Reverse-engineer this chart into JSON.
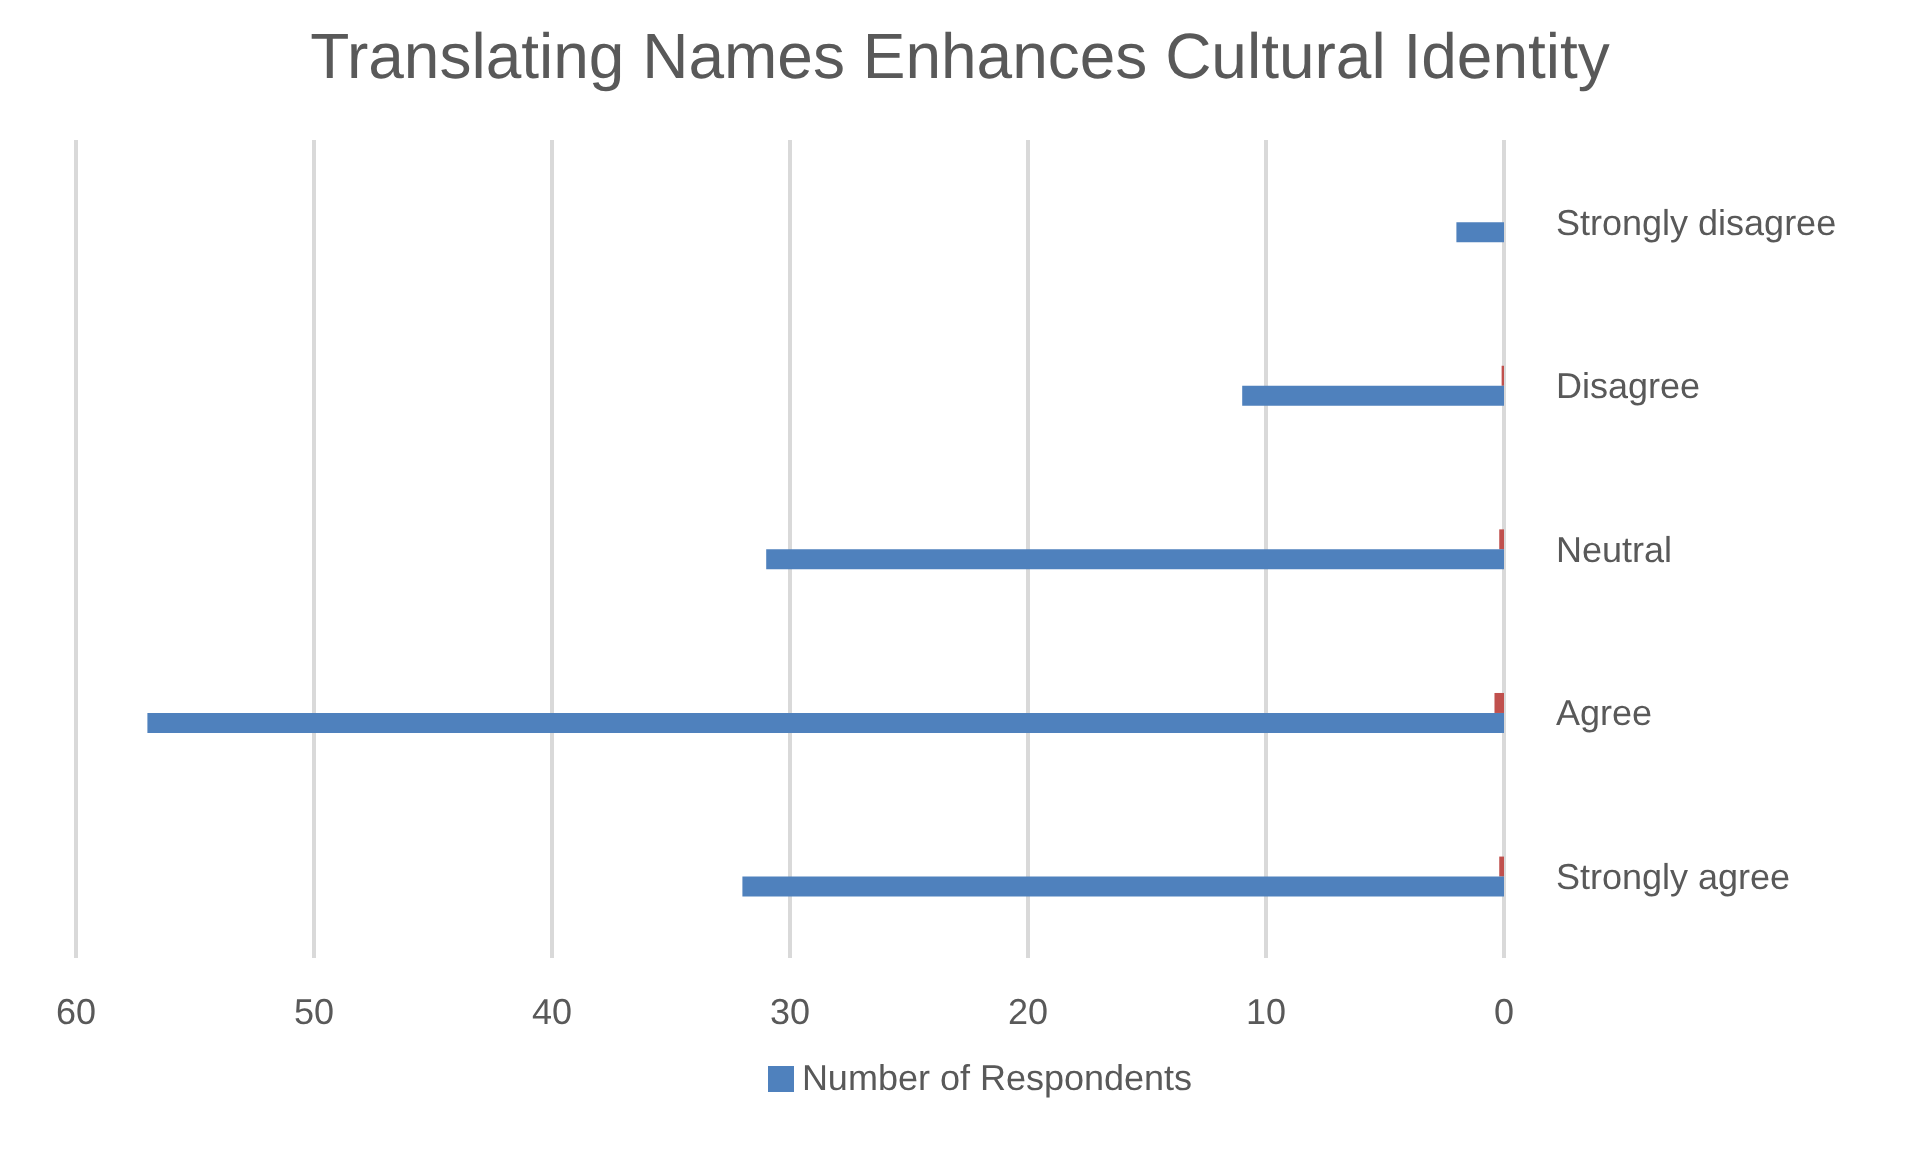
{
  "chart_data": {
    "type": "bar",
    "orientation": "horizontal",
    "title": "Translating Names Enhances Cultural Identity",
    "categories": [
      "Strongly disagree",
      "Disagree",
      "Neutral",
      "Agree",
      "Strongly agree"
    ],
    "series": [
      {
        "color": "#c0504d",
        "values": [
          null,
          0.1,
          0.2,
          0.4,
          0.2
        ]
      },
      {
        "name": "Number of Respondents",
        "color": "#4f81bd",
        "values": [
          2,
          11,
          31,
          57,
          32
        ]
      }
    ],
    "xlim": [
      60,
      0
    ],
    "xticks": [
      60,
      50,
      40,
      30,
      20,
      10,
      0
    ],
    "grid": "x",
    "legend": "bottom"
  }
}
